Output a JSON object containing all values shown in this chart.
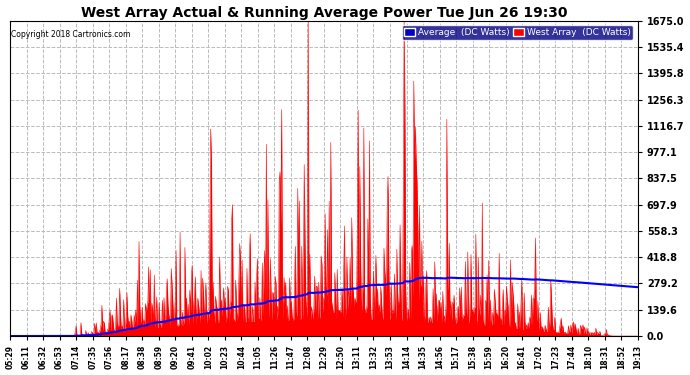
{
  "title": "West Array Actual & Running Average Power Tue Jun 26 19:30",
  "copyright": "Copyright 2018 Cartronics.com",
  "legend_avg": "Average  (DC Watts)",
  "legend_west": "West Array  (DC Watts)",
  "ylim": [
    0,
    1675.0
  ],
  "yticks": [
    0.0,
    139.6,
    279.2,
    418.8,
    558.3,
    697.9,
    837.5,
    977.1,
    1116.7,
    1256.3,
    1395.8,
    1535.4,
    1675.0
  ],
  "bg_color": "#ffffff",
  "plot_bg_color": "#ffffff",
  "grid_color": "#bbbbbb",
  "title_color": "#000000",
  "tick_color": "#000000",
  "west_array_color": "#ff0000",
  "avg_color": "#0000ff",
  "xtick_labels": [
    "05:29",
    "06:11",
    "06:32",
    "06:53",
    "07:14",
    "07:35",
    "07:56",
    "08:17",
    "08:38",
    "08:59",
    "09:20",
    "09:41",
    "10:02",
    "10:23",
    "10:44",
    "11:05",
    "11:26",
    "11:47",
    "12:08",
    "12:29",
    "12:50",
    "13:11",
    "13:32",
    "13:53",
    "14:14",
    "14:35",
    "14:56",
    "15:17",
    "15:38",
    "15:59",
    "16:20",
    "16:41",
    "17:02",
    "17:23",
    "17:44",
    "18:10",
    "18:31",
    "18:52",
    "19:13"
  ],
  "n_points": 780
}
